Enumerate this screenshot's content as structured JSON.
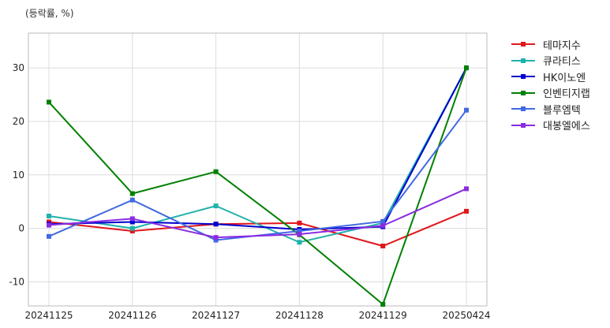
{
  "unit_label": "(등락률, %)",
  "chart_data": {
    "type": "line",
    "x": [
      "20241125",
      "20241126",
      "20241127",
      "20241128",
      "20241129",
      "20250424"
    ],
    "ylim": [
      -14.5,
      36.5
    ],
    "yticks": [
      -10,
      0,
      10,
      20,
      30
    ],
    "grid": true,
    "legend_position": "outside-top-right",
    "series": [
      {
        "name": "테마지수",
        "color": "#e0171b",
        "values": [
          1.2,
          -0.5,
          0.8,
          1.0,
          -3.3,
          3.2
        ]
      },
      {
        "name": "큐라티스",
        "color": "#20b2aa",
        "values": [
          2.3,
          0.0,
          4.2,
          -2.6,
          1.0,
          30.0
        ]
      },
      {
        "name": "HK이노엔",
        "color": "#0000cd",
        "values": [
          0.8,
          1.2,
          0.8,
          -0.2,
          0.3,
          30.0
        ]
      },
      {
        "name": "인벤티지랩",
        "color": "#008000",
        "values": [
          23.6,
          6.5,
          10.6,
          -1.2,
          -14.2,
          30.0
        ]
      },
      {
        "name": "블루엠텍",
        "color": "#4169e1",
        "values": [
          -1.5,
          5.3,
          -2.2,
          -0.5,
          1.3,
          22.1
        ]
      },
      {
        "name": "대봉엘에스",
        "color": "#8a2be2",
        "values": [
          0.6,
          1.8,
          -1.7,
          -1.1,
          0.5,
          7.4
        ]
      }
    ]
  }
}
